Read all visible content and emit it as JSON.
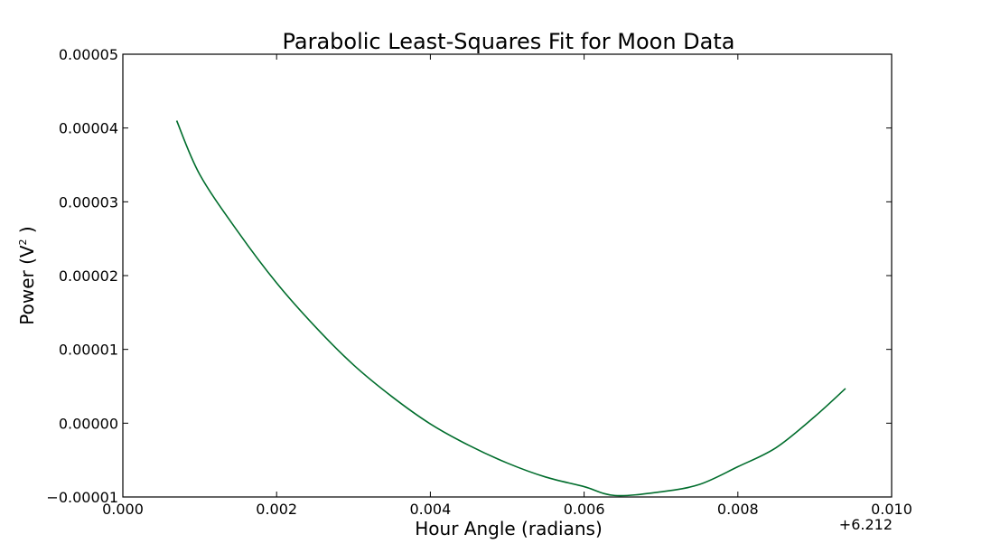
{
  "chart_data": {
    "type": "line",
    "title": "Parabolic Least-Squares Fit for Moon Data",
    "xlabel": "Hour Angle (radians)",
    "ylabel_main": "Power (V",
    "ylabel_sup": "2",
    "ylabel_end": " )",
    "x_offset_label": "+6.212",
    "xlim": [
      0.0,
      0.01
    ],
    "ylim": [
      -1e-05,
      5e-05
    ],
    "xticks": [
      {
        "value": 0.0,
        "label": "0.000"
      },
      {
        "value": 0.002,
        "label": "0.002"
      },
      {
        "value": 0.004,
        "label": "0.004"
      },
      {
        "value": 0.006,
        "label": "0.006"
      },
      {
        "value": 0.008,
        "label": "0.008"
      },
      {
        "value": 0.01,
        "label": "0.010"
      }
    ],
    "yticks": [
      {
        "value": -1e-05,
        "label": "−0.00001"
      },
      {
        "value": 0.0,
        "label": "0.00000"
      },
      {
        "value": 1e-05,
        "label": "0.00001"
      },
      {
        "value": 2e-05,
        "label": "0.00002"
      },
      {
        "value": 3e-05,
        "label": "0.00003"
      },
      {
        "value": 4e-05,
        "label": "0.00004"
      },
      {
        "value": 5e-05,
        "label": "0.00005"
      }
    ],
    "grid": false,
    "series": [
      {
        "color": "#006d2c",
        "x": [
          0.0007,
          0.001,
          0.0015,
          0.002,
          0.0025,
          0.003,
          0.0035,
          0.004,
          0.0045,
          0.005,
          0.0055,
          0.006,
          0.0064,
          0.007,
          0.0075,
          0.008,
          0.0085,
          0.009,
          0.0094
        ],
        "y": [
          4.1e-05,
          3.37e-05,
          2.59e-05,
          1.9e-05,
          1.31e-05,
          7.9e-06,
          3.6e-06,
          -1e-07,
          -3e-06,
          -5.4e-06,
          -7.3e-06,
          -8.6e-06,
          -9.8e-06,
          -9.3e-06,
          -8.3e-06,
          -5.9e-06,
          -3.3e-06,
          9e-07,
          4.7e-06
        ]
      }
    ]
  }
}
